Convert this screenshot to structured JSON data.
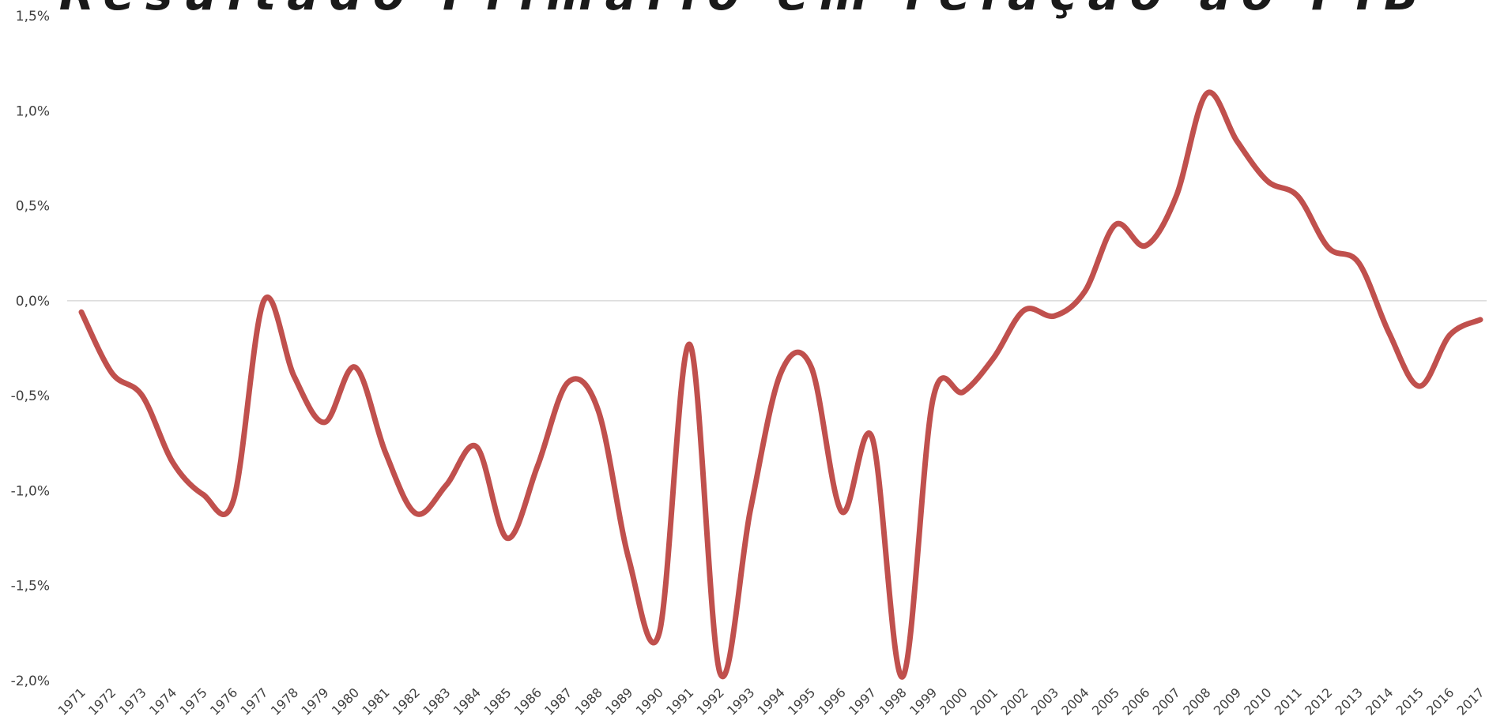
{
  "chart_data": {
    "type": "line",
    "title": "Resultado Primário em relação ao PIB",
    "xlabel": "",
    "ylabel": "",
    "ylim": [
      -2.0,
      1.5
    ],
    "y_ticks": [
      "1,5%",
      "1,0%",
      "0,5%",
      "0,0%",
      "-0,5%",
      "-1,0%",
      "-1,5%",
      "-2,0%"
    ],
    "y_tick_values": [
      1.5,
      1.0,
      0.5,
      0.0,
      -0.5,
      -1.0,
      -1.5,
      -2.0
    ],
    "grid": false,
    "legend": "none",
    "line_color": "#c0504d",
    "categories": [
      "1971",
      "1972",
      "1973",
      "1974",
      "1975",
      "1976",
      "1977",
      "1978",
      "1979",
      "1980",
      "1981",
      "1982",
      "1983",
      "1984",
      "1985",
      "1986",
      "1987",
      "1988",
      "1989",
      "1990",
      "1991",
      "1992",
      "1993",
      "1994",
      "1995",
      "1996",
      "1997",
      "1998",
      "1999",
      "2000",
      "2001",
      "2002",
      "2003",
      "2004",
      "2005",
      "2006",
      "2007",
      "2008",
      "2009",
      "2010",
      "2011",
      "2012",
      "2013",
      "2014",
      "2015",
      "2016",
      "2017"
    ],
    "values": [
      -0.06,
      -0.38,
      -0.5,
      -0.85,
      -1.02,
      -1.05,
      0.0,
      -0.4,
      -0.64,
      -0.35,
      -0.8,
      -1.12,
      -0.97,
      -0.77,
      -1.25,
      -0.87,
      -0.43,
      -0.58,
      -1.36,
      -1.75,
      -0.23,
      -1.96,
      -1.1,
      -0.38,
      -0.35,
      -1.11,
      -0.72,
      -1.98,
      -0.52,
      -0.48,
      -0.3,
      -0.05,
      -0.08,
      0.05,
      0.4,
      0.29,
      0.55,
      1.09,
      0.84,
      0.63,
      0.55,
      0.28,
      0.2,
      -0.17,
      -0.45,
      -0.18,
      -0.1
    ]
  }
}
